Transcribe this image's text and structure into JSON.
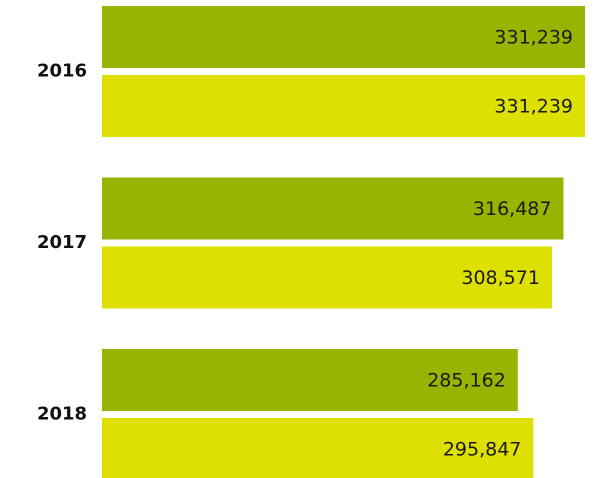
{
  "chart_data": {
    "type": "bar",
    "orientation": "horizontal",
    "categories": [
      "2016",
      "2017",
      "2018"
    ],
    "series": [
      {
        "color": "#96b400",
        "values": [
          331239,
          316487,
          285162
        ],
        "value_labels": [
          "331,239",
          "316,487",
          "285,162"
        ]
      },
      {
        "color": "#dde000",
        "values": [
          331239,
          308571,
          295847
        ],
        "value_labels": [
          "331,239",
          "308,571",
          "295,847"
        ]
      }
    ]
  }
}
